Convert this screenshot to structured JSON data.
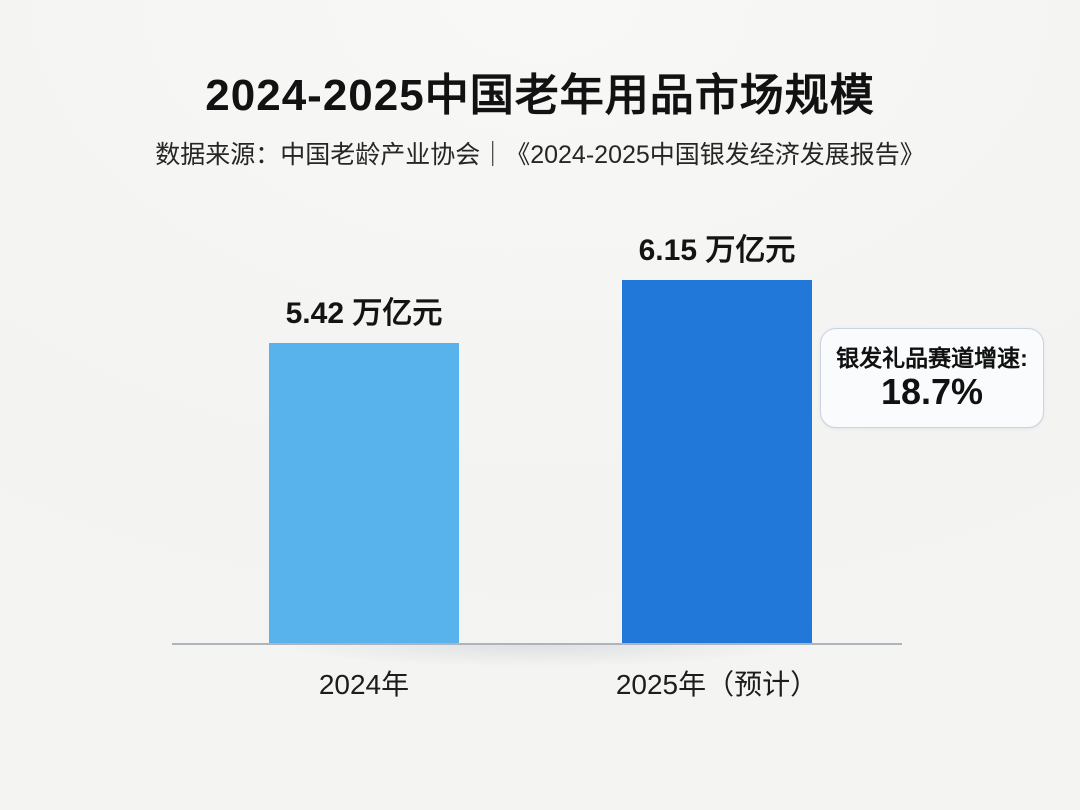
{
  "chart_data": {
    "type": "bar",
    "title": "2024-2025中国老年用品市场规模",
    "source": "数据来源：中国老龄产业协会｜《2024-2025中国银发经济发展报告》",
    "categories": [
      "2024年",
      "2025年（预计）"
    ],
    "values": [
      5.42,
      6.15
    ],
    "unit": "万亿元",
    "value_labels": [
      "5.42 万亿元",
      "6.15 万亿元"
    ],
    "series_colors": [
      "#58b3ec",
      "#2278d8"
    ],
    "ylim": [
      0,
      6.5
    ],
    "grid": false,
    "legend": "none",
    "axis_color": "#aeb4be",
    "background_color": "#f3f3f1",
    "annotation": {
      "label": "银发礼品赛道增速:",
      "value": "18.7%"
    }
  }
}
